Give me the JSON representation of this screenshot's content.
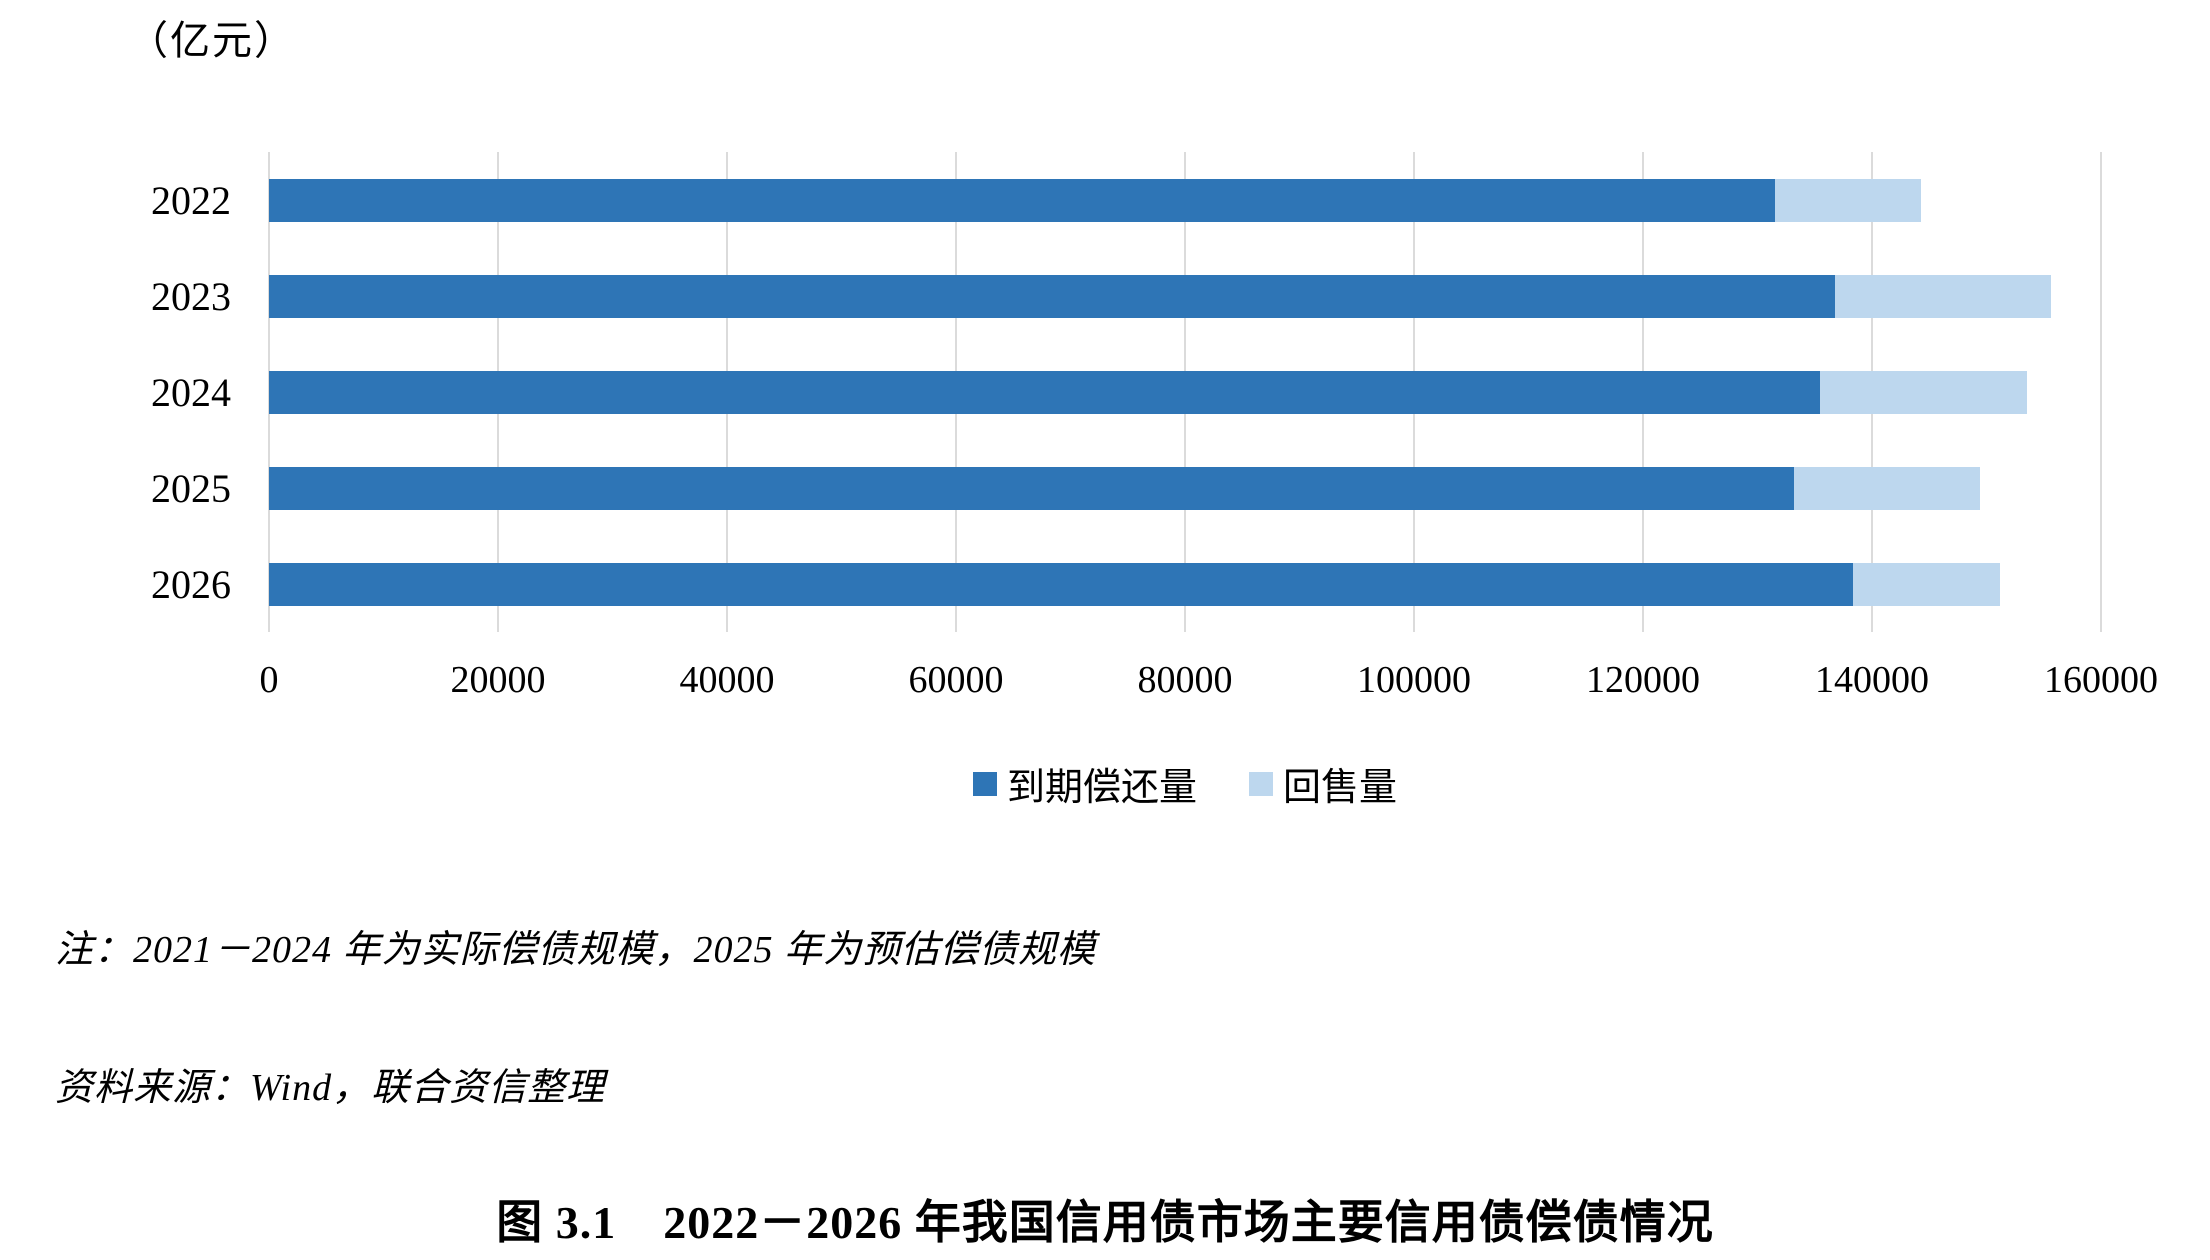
{
  "page": {
    "unit_label": "（亿元）",
    "note": "注：2021－2024 年为实际偿债规模，2025 年为预估偿债规模",
    "source": "资料来源：Wind，联合资信整理",
    "caption": "图 3.1　2022－2026 年我国信用债市场主要信用债偿债情况"
  },
  "chart_data": {
    "type": "bar",
    "orientation": "horizontal",
    "stacked": true,
    "title": "（亿元）",
    "categories": [
      "2022",
      "2023",
      "2024",
      "2025",
      "2026"
    ],
    "series": [
      {
        "name": "到期偿还量",
        "color": "#2E75B6",
        "values": [
          131500,
          136800,
          135500,
          133200,
          138300
        ]
      },
      {
        "name": "回售量",
        "color": "#BDD7EE",
        "values": [
          12800,
          18800,
          18000,
          16200,
          12900
        ]
      }
    ],
    "xlim": [
      0,
      160000
    ],
    "xticks": [
      0,
      20000,
      40000,
      60000,
      80000,
      100000,
      120000,
      140000,
      160000
    ],
    "grid": true,
    "gridline_color": "#DBDBDB",
    "legend_position": "bottom"
  }
}
